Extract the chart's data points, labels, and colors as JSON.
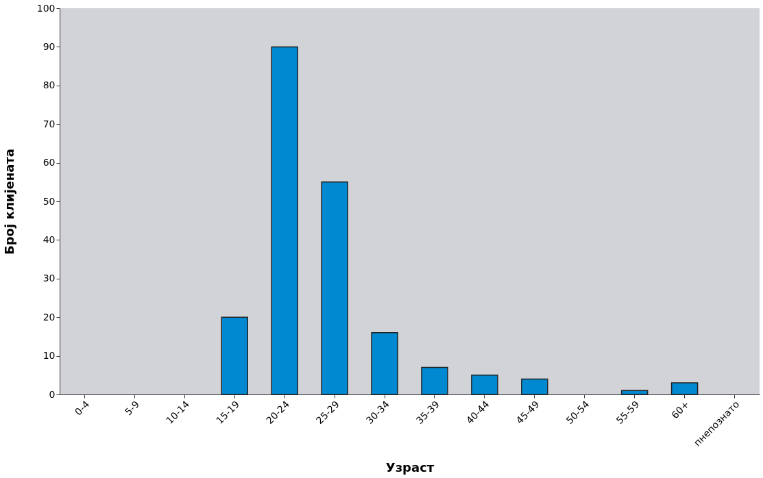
{
  "chart_data": {
    "type": "bar",
    "xlabel": "Узраст",
    "ylabel": "Број клијената",
    "categories": [
      "0-4",
      "5-9",
      "10-14",
      "15-19",
      "20-24",
      "25-29",
      "30-34",
      "35-39",
      "40-44",
      "45-49",
      "50-54",
      "55-59",
      "60+",
      "пнепознато"
    ],
    "values": [
      0,
      0,
      0,
      20,
      90,
      55,
      16,
      7,
      5,
      4,
      0,
      1,
      3,
      0
    ],
    "color": "#0088d1",
    "ylim": [
      0,
      100
    ],
    "yticks": [
      0,
      10,
      20,
      30,
      40,
      50,
      60,
      70,
      80,
      90,
      100
    ],
    "grid": false
  }
}
